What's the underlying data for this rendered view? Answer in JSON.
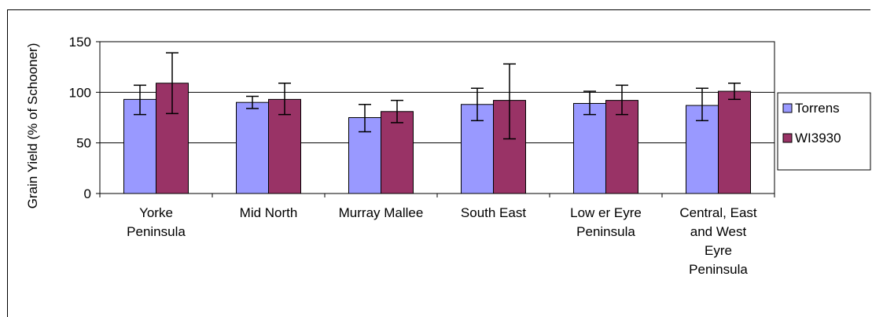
{
  "chart_data": {
    "type": "bar",
    "title": "",
    "xlabel": "",
    "ylabel": "Grain Yield (% of Schooner)",
    "ylim": [
      0,
      150
    ],
    "yticks": [
      0,
      50,
      100,
      150
    ],
    "grid": true,
    "legend_position": "right",
    "categories": [
      [
        "Yorke",
        "Peninsula"
      ],
      [
        "Mid North"
      ],
      [
        "Murray Mallee"
      ],
      [
        "South East"
      ],
      [
        "Low er Eyre",
        "Peninsula"
      ],
      [
        "Central, East",
        "and West",
        "Eyre",
        "Peninsula"
      ]
    ],
    "series": [
      {
        "name": "Torrens",
        "color": "#9999ff",
        "values": [
          93,
          90,
          75,
          88,
          89,
          87
        ],
        "error_low": [
          78,
          84,
          61,
          72,
          78,
          72
        ],
        "error_high": [
          107,
          96,
          88,
          104,
          101,
          104
        ]
      },
      {
        "name": "WI3930",
        "color": "#993366",
        "values": [
          109,
          93,
          81,
          92,
          92,
          101
        ],
        "error_low": [
          79,
          78,
          70,
          54,
          78,
          93
        ],
        "error_high": [
          139,
          109,
          92,
          128,
          107,
          109
        ]
      }
    ]
  }
}
